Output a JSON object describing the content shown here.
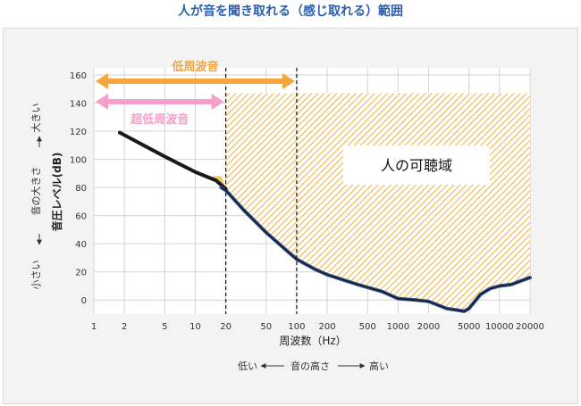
{
  "page": {
    "heading": "人が音を聞き取れる（感じ取れる）範囲"
  },
  "colors": {
    "accent_blue": "#2a5fb0",
    "curve_black": "#1a1a1a",
    "curve_blue": "#2e4f8c",
    "hatch_orange": "#f4b13a",
    "band_orange": "#f4a53c",
    "band_pink": "#f5a0c8"
  },
  "chart_data": {
    "type": "line",
    "title": "人が音を聞き取れる（感じ取れる）範囲",
    "xlabel": "周波数（Hz）",
    "ylabel": "音圧レベル(dB)",
    "x_scale": "log",
    "xlim": [
      1,
      20000
    ],
    "ylim": [
      -10,
      160
    ],
    "x_ticks": [
      1,
      2,
      5,
      10,
      20,
      50,
      100,
      200,
      500,
      1000,
      2000,
      5000,
      10000,
      20000
    ],
    "x_tick_labels": [
      "1",
      "2",
      "5",
      "10",
      "20",
      "50",
      "100",
      "200",
      "500",
      "1000",
      "2000",
      "5000",
      "10000",
      "20000"
    ],
    "y_ticks": [
      0,
      20,
      40,
      60,
      80,
      100,
      120,
      140,
      160
    ],
    "y_tick_labels": [
      "0",
      "20",
      "40",
      "60",
      "80",
      "100",
      "120",
      "140",
      "160"
    ],
    "grid": true,
    "upper_limit_db": 147,
    "series": [
      {
        "kind": "threshold-infrasound",
        "x": [
          1.8,
          5,
          10,
          16,
          20
        ],
        "y": [
          119,
          102,
          91,
          85,
          79
        ]
      },
      {
        "kind": "threshold-audible",
        "x": [
          18,
          20,
          30,
          50,
          80,
          100,
          150,
          200,
          400,
          700,
          1000,
          1500,
          2000,
          3000,
          4500,
          5000,
          6500,
          8000,
          10000,
          13000,
          20000
        ],
        "y": [
          80,
          78,
          64,
          48,
          35,
          29,
          22,
          18,
          11,
          6,
          1,
          0,
          -1,
          -6,
          -8,
          -6,
          4,
          8,
          10,
          11,
          16
        ]
      }
    ],
    "bands": [
      {
        "label": "低周波音",
        "x_range": [
          1,
          100
        ]
      },
      {
        "label": "超低周波音",
        "x_range": [
          1,
          20
        ]
      }
    ],
    "divider_lines_hz": [
      20,
      100
    ],
    "region_label": "人の可聴域",
    "y_side_text": {
      "top": "大きい",
      "middle": "音の大きさ",
      "bottom": "小さい"
    },
    "x_under_text": {
      "left": "低い",
      "middle": "音の高さ",
      "right": "高い"
    }
  }
}
